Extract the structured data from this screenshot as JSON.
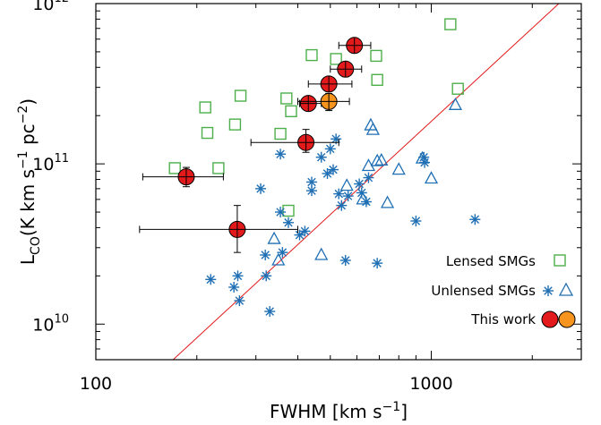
{
  "chart_data": {
    "type": "scatter",
    "x_scale": "log",
    "y_scale": "log",
    "xlim": [
      100,
      2800
    ],
    "ylim": [
      6000000000,
      1000000000000
    ],
    "x_ticks": [
      {
        "value": 100,
        "label": "100"
      },
      {
        "value": 1000,
        "label": "1000"
      }
    ],
    "y_ticks": [
      {
        "value": 10000000000,
        "base": "10",
        "exp": "10"
      },
      {
        "value": 100000000000,
        "base": "10",
        "exp": "11"
      },
      {
        "value": 1000000000000,
        "base": "10",
        "exp": "12"
      }
    ],
    "xlabel": {
      "pre": "FWHM [km s",
      "sup": "−1",
      "post": "]"
    },
    "ylabel": {
      "main": "L",
      "sub": "CO",
      "mid": "(K km s",
      "sup1": "−1",
      "mid2": " pc",
      "sup2": "−2",
      "end": ")"
    },
    "grid": false,
    "legend_position": "bottom-right",
    "legend": [
      {
        "label": "Lensed SMGs",
        "markers": [
          "square-green"
        ]
      },
      {
        "label": "Unlensed SMGs",
        "markers": [
          "asterisk-blue",
          "triangle-blue"
        ]
      },
      {
        "label": "This work",
        "markers": [
          "circle-red",
          "circle-orange"
        ]
      }
    ],
    "colors": {
      "lensed": "#4daf4a",
      "unlensed": "#1f6fb4",
      "this_work_red": "#e31a1c",
      "this_work_orange": "#f7941d",
      "relation_line": "#e31a1c"
    },
    "relation_line": {
      "points": [
        [
          170,
          6000000000
        ],
        [
          2400,
          1000000000000
        ]
      ]
    },
    "series": [
      {
        "name": "Lensed SMGs",
        "marker": "square",
        "points": [
          [
            172,
            94000000000
          ],
          [
            212,
            225000000000
          ],
          [
            215,
            156000000000
          ],
          [
            232,
            94000000000
          ],
          [
            260,
            176000000000
          ],
          [
            270,
            266000000000
          ],
          [
            355,
            154000000000
          ],
          [
            370,
            256000000000
          ],
          [
            382,
            213000000000
          ],
          [
            375,
            51000000000
          ],
          [
            440,
            477000000000
          ],
          [
            520,
            451000000000
          ],
          [
            685,
            472000000000
          ],
          [
            690,
            334000000000
          ],
          [
            1140,
            743000000000
          ],
          [
            1200,
            294000000000
          ]
        ]
      },
      {
        "name": "Unlensed SMGs",
        "marker": "asterisk",
        "points": [
          [
            220,
            19000000000
          ],
          [
            258,
            17000000000
          ],
          [
            265,
            20000000000
          ],
          [
            268,
            14000000000
          ],
          [
            310,
            70000000000
          ],
          [
            320,
            27000000000
          ],
          [
            322,
            20000000000
          ],
          [
            330,
            12000000000
          ],
          [
            355,
            50000000000
          ],
          [
            360,
            28000000000
          ],
          [
            355,
            115000000000
          ],
          [
            375,
            43000000000
          ],
          [
            405,
            36000000000
          ],
          [
            420,
            38000000000
          ],
          [
            440,
            68000000000
          ],
          [
            440,
            77000000000
          ],
          [
            470,
            110000000000
          ],
          [
            490,
            87000000000
          ],
          [
            500,
            124000000000
          ],
          [
            510,
            92000000000
          ],
          [
            520,
            143000000000
          ],
          [
            530,
            65000000000
          ],
          [
            540,
            55000000000
          ],
          [
            555,
            25000000000
          ],
          [
            565,
            63000000000
          ],
          [
            610,
            75000000000
          ],
          [
            620,
            66000000000
          ],
          [
            640,
            58000000000
          ],
          [
            650,
            82000000000
          ],
          [
            690,
            24000000000
          ],
          [
            900,
            44000000000
          ],
          [
            950,
            110000000000
          ],
          [
            955,
            102000000000
          ],
          [
            1350,
            45000000000
          ]
        ]
      },
      {
        "name": "Unlensed SMGs",
        "marker": "triangle",
        "points": [
          [
            340,
            34000000000
          ],
          [
            350,
            25000000000
          ],
          [
            470,
            27000000000
          ],
          [
            560,
            73000000000
          ],
          [
            625,
            60000000000
          ],
          [
            650,
            97000000000
          ],
          [
            660,
            174000000000
          ],
          [
            670,
            163000000000
          ],
          [
            690,
            104000000000
          ],
          [
            710,
            105000000000
          ],
          [
            740,
            57000000000
          ],
          [
            800,
            92000000000
          ],
          [
            940,
            108000000000
          ],
          [
            1000,
            81000000000
          ],
          [
            1180,
            233000000000
          ]
        ]
      },
      {
        "name": "This work",
        "marker": "circle",
        "points": [
          {
            "x": 186,
            "y": 83000000000,
            "xerr": [
              138,
              240
            ],
            "yerr": [
              72000000000,
              95000000000
            ],
            "color": "red"
          },
          {
            "x": 264,
            "y": 39000000000,
            "xerr": [
              135,
              400
            ],
            "yerr": [
              28000000000,
              55000000000
            ],
            "color": "red"
          },
          {
            "x": 423,
            "y": 136000000000,
            "xerr": [
              290,
              530
            ],
            "yerr": [
              118000000000,
              164000000000
            ],
            "color": "red"
          },
          {
            "x": 430,
            "y": 238000000000,
            "xerr": [
              405,
              470
            ],
            "yerr": [
              218000000000,
              258000000000
            ],
            "color": "red"
          },
          {
            "x": 495,
            "y": 245000000000,
            "xerr": [
              400,
              570
            ],
            "yerr": [
              215000000000,
              275000000000
            ],
            "color": "orange"
          },
          {
            "x": 495,
            "y": 315000000000,
            "xerr": [
              430,
              580
            ],
            "yerr": [
              285000000000,
              345000000000
            ],
            "color": "red"
          },
          {
            "x": 555,
            "y": 390000000000,
            "xerr": [
              500,
              620
            ],
            "yerr": [
              350000000000,
              430000000000
            ],
            "color": "red"
          },
          {
            "x": 590,
            "y": 548000000000,
            "xerr": [
              530,
              660
            ],
            "yerr": [
              500000000000,
              590000000000
            ],
            "color": "red"
          }
        ]
      }
    ]
  }
}
